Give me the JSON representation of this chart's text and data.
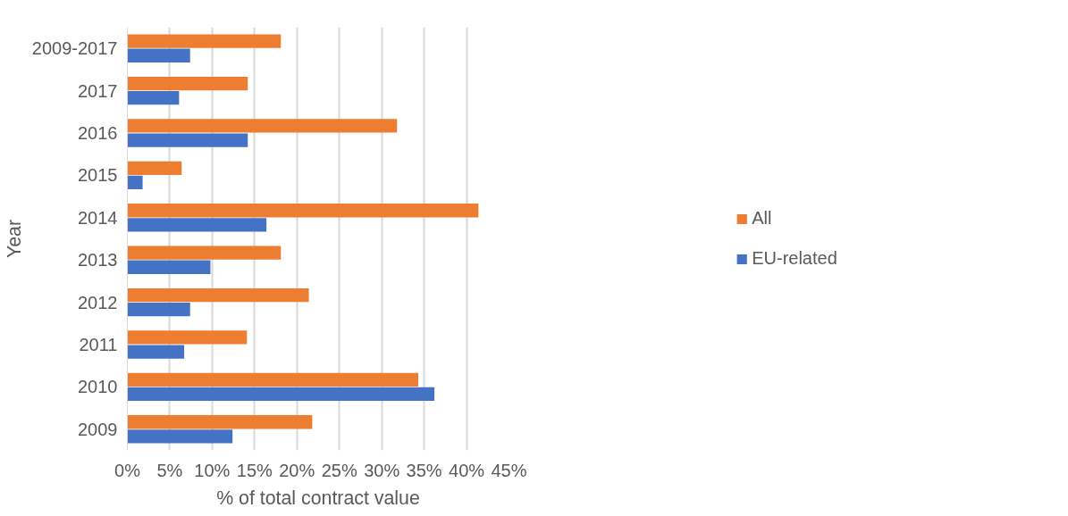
{
  "chart_data": {
    "type": "bar",
    "orientation": "horizontal",
    "xlabel": "% of total contract value",
    "ylabel": "Year",
    "categories": [
      "2009-2017",
      "2017",
      "2016",
      "2015",
      "2014",
      "2013",
      "2012",
      "2011",
      "2010",
      "2009"
    ],
    "series": [
      {
        "name": "All",
        "color": "#ed7d31",
        "values": [
          18.1,
          14.2,
          31.8,
          6.4,
          41.4,
          18.1,
          21.4,
          14.1,
          34.3,
          21.8
        ]
      },
      {
        "name": "EU-related",
        "color": "#4472c4",
        "values": [
          7.4,
          6.1,
          14.2,
          1.8,
          16.4,
          9.8,
          7.4,
          6.7,
          36.2,
          12.4
        ]
      }
    ],
    "xlim": [
      0,
      45
    ],
    "xticks": [
      {
        "value": 0,
        "label": "0%"
      },
      {
        "value": 5,
        "label": "5%"
      },
      {
        "value": 10,
        "label": "10%"
      },
      {
        "value": 15,
        "label": "15%"
      },
      {
        "value": 20,
        "label": "20%"
      },
      {
        "value": 25,
        "label": "25%"
      },
      {
        "value": 30,
        "label": "30%"
      },
      {
        "value": 35,
        "label": "35%"
      },
      {
        "value": 40,
        "label": "40%"
      },
      {
        "value": 45,
        "label": "45%"
      }
    ],
    "grid": "x",
    "legend": "right"
  }
}
